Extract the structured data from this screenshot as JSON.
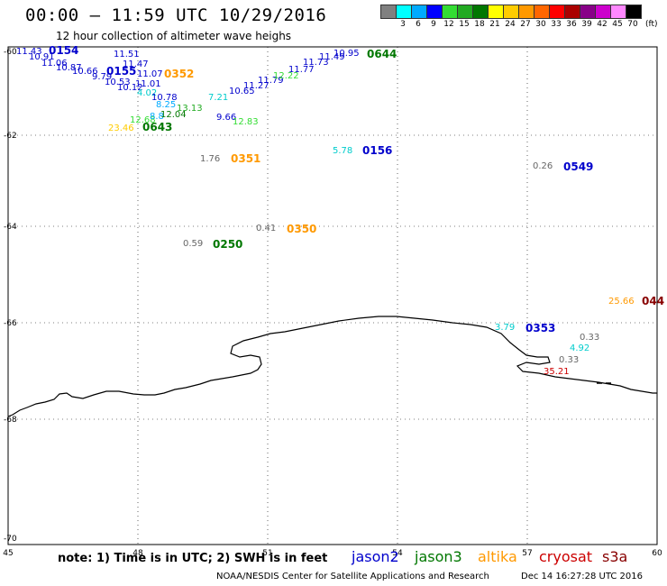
{
  "header": {
    "title": "00:00 – 11:59 UTC 10/29/2016",
    "subtitle": "12 hour collection of altimeter wave heighs"
  },
  "legend": {
    "unit": "(ft)",
    "colors": [
      "#808080",
      "#00ffff",
      "#00aaff",
      "#0000ff",
      "#33dd33",
      "#22aa22",
      "#007700",
      "#ffff00",
      "#ffcc00",
      "#ff9900",
      "#ff6600",
      "#ff0000",
      "#aa0000",
      "#880088",
      "#cc00cc",
      "#ff88ff",
      "#000000"
    ],
    "labels": [
      "3",
      "6",
      "9",
      "12",
      "15",
      "18",
      "21",
      "24",
      "27",
      "30",
      "33",
      "36",
      "39",
      "42",
      "45",
      "70"
    ]
  },
  "axes": {
    "lon_ticks": [
      "45",
      "48",
      "51",
      "54",
      "57",
      "60"
    ],
    "lat_ticks": [
      "-60",
      "-62",
      "-64",
      "-66",
      "-68",
      "-70"
    ]
  },
  "observations": [
    {
      "t": "11.43",
      "c": "#0000cc"
    },
    {
      "t": "0154",
      "c": "#0000cc",
      "b": true
    },
    {
      "t": "10.91",
      "c": "#0000cc"
    },
    {
      "t": "11.06",
      "c": "#0000cc"
    },
    {
      "t": "10.87",
      "c": "#0000cc"
    },
    {
      "t": "10.66",
      "c": "#0000cc"
    },
    {
      "t": "9.79",
      "c": "#0000cc"
    },
    {
      "t": "0155",
      "c": "#0000cc",
      "b": true
    },
    {
      "t": "10.53",
      "c": "#0000cc"
    },
    {
      "t": "10.12",
      "c": "#0000cc"
    },
    {
      "t": "11.51",
      "c": "#0000cc"
    },
    {
      "t": "11.47",
      "c": "#0000cc"
    },
    {
      "t": "11.07",
      "c": "#0000cc"
    },
    {
      "t": "11.01",
      "c": "#0000cc"
    },
    {
      "t": "0352",
      "c": "#ff9900",
      "b": true
    },
    {
      "t": "4.02",
      "c": "#00cccc"
    },
    {
      "t": "10.78",
      "c": "#0000cc"
    },
    {
      "t": "8.25",
      "c": "#00aaff"
    },
    {
      "t": "13.13",
      "c": "#22aa22"
    },
    {
      "t": "12.68",
      "c": "#33dd33"
    },
    {
      "t": "8.8",
      "c": "#00aaff"
    },
    {
      "t": "12.04",
      "c": "#007700"
    },
    {
      "t": "23.46",
      "c": "#ffcc00"
    },
    {
      "t": "0643",
      "c": "#007700",
      "b": true
    },
    {
      "t": "7.21",
      "c": "#00cccc"
    },
    {
      "t": "10.65",
      "c": "#0000cc"
    },
    {
      "t": "11.27",
      "c": "#0000cc"
    },
    {
      "t": "11.79",
      "c": "#0000cc"
    },
    {
      "t": "12.22",
      "c": "#33dd33"
    },
    {
      "t": "11.77",
      "c": "#0000cc"
    },
    {
      "t": "11.73",
      "c": "#0000cc"
    },
    {
      "t": "11.49",
      "c": "#0000cc"
    },
    {
      "t": "10.95",
      "c": "#0000cc"
    },
    {
      "t": "0644",
      "c": "#007700",
      "b": true
    },
    {
      "t": "9.66",
      "c": "#0000cc"
    },
    {
      "t": "12.83",
      "c": "#33dd33"
    },
    {
      "t": "1.76",
      "c": "#666666"
    },
    {
      "t": "0351",
      "c": "#ff9900",
      "b": true
    },
    {
      "t": "5.78",
      "c": "#00cccc"
    },
    {
      "t": "0156",
      "c": "#0000cc",
      "b": true
    },
    {
      "t": "0.26",
      "c": "#666666"
    },
    {
      "t": "0549",
      "c": "#0000cc",
      "b": true
    },
    {
      "t": "0.41",
      "c": "#666666"
    },
    {
      "t": "0350",
      "c": "#ff9900",
      "b": true
    },
    {
      "t": "0.59",
      "c": "#666666"
    },
    {
      "t": "0250",
      "c": "#007700",
      "b": true
    },
    {
      "t": "25.66",
      "c": "#ff9900"
    },
    {
      "t": "044",
      "c": "#880000",
      "b": true
    },
    {
      "t": "3.79",
      "c": "#00cccc"
    },
    {
      "t": "0353",
      "c": "#0000cc",
      "b": true
    },
    {
      "t": "0.33",
      "c": "#666666"
    },
    {
      "t": "4.92",
      "c": "#00cccc"
    },
    {
      "t": "0.33",
      "c": "#666666"
    },
    {
      "t": "35.21",
      "c": "#cc0000"
    }
  ],
  "footer": {
    "note": "note: 1) Time is in UTC; 2) SWH is in feet",
    "credit": "NOAA/NESDIS Center for Satellite Applications and Research",
    "date": "Dec 14 16:27:28 UTC 2016",
    "satellites": [
      {
        "name": "jason2",
        "color": "#0000cc"
      },
      {
        "name": "jason3",
        "color": "#007700"
      },
      {
        "name": "altika",
        "color": "#ff9900"
      },
      {
        "name": "cryosat",
        "color": "#cc0000"
      },
      {
        "name": "s3a",
        "color": "#880000"
      }
    ]
  }
}
